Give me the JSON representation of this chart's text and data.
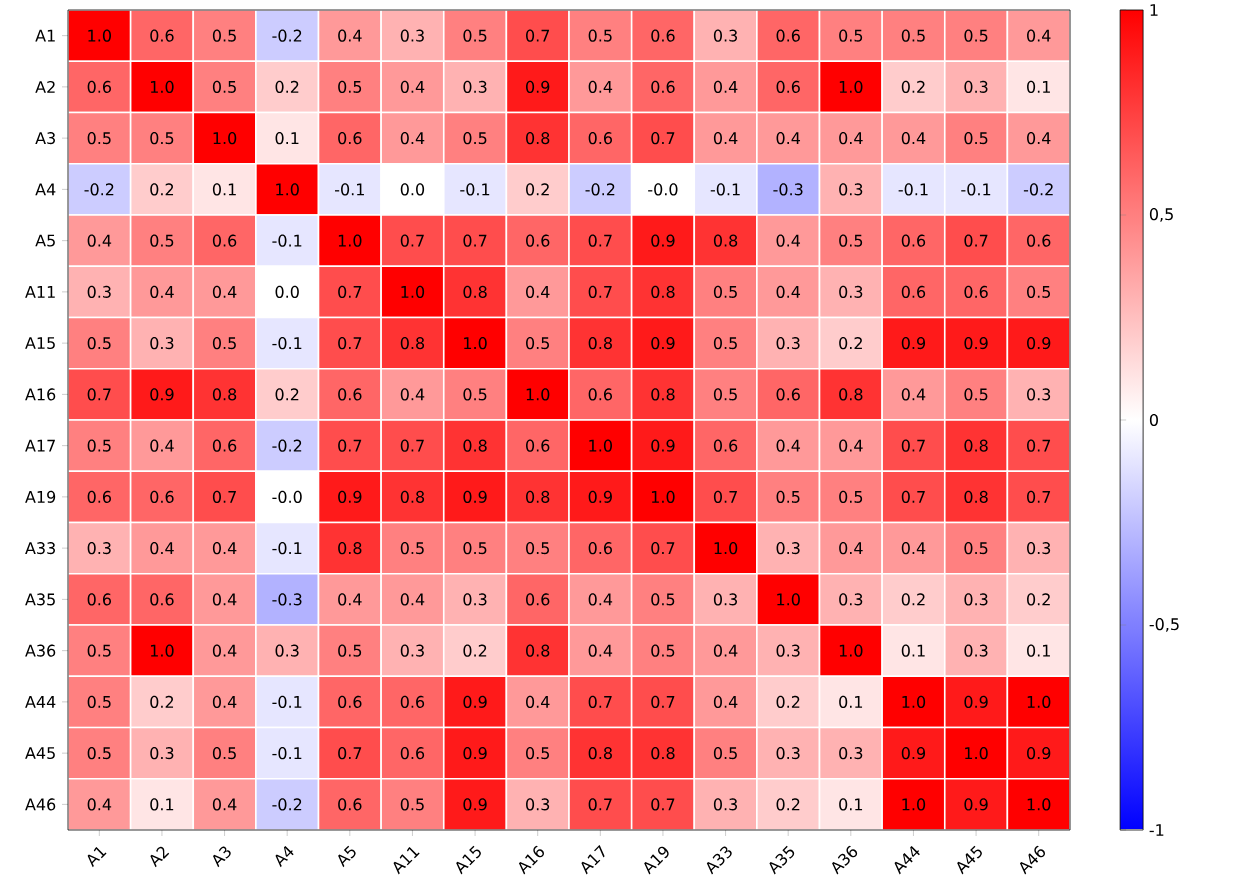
{
  "chart_data": {
    "type": "heatmap",
    "categories": [
      "A1",
      "A2",
      "A3",
      "A4",
      "A5",
      "A11",
      "A15",
      "A16",
      "A17",
      "A19",
      "A33",
      "A35",
      "A36",
      "A44",
      "A45",
      "A46"
    ],
    "y_categories": [
      "A1",
      "A2",
      "A3",
      "A4",
      "A5",
      "A11",
      "A15",
      "A16",
      "A17",
      "A19",
      "A33",
      "A35",
      "A36",
      "A44",
      "A45",
      "A46"
    ],
    "cells": [
      [
        1.0,
        0.6,
        0.5,
        -0.2,
        0.4,
        0.3,
        0.5,
        0.7,
        0.5,
        0.6,
        0.3,
        0.6,
        0.5,
        0.5,
        0.5,
        0.4
      ],
      [
        0.6,
        1.0,
        0.5,
        0.2,
        0.5,
        0.4,
        0.3,
        0.9,
        0.4,
        0.6,
        0.4,
        0.6,
        1.0,
        0.2,
        0.3,
        0.1
      ],
      [
        0.5,
        0.5,
        1.0,
        0.1,
        0.6,
        0.4,
        0.5,
        0.8,
        0.6,
        0.7,
        0.4,
        0.4,
        0.4,
        0.4,
        0.5,
        0.4
      ],
      [
        -0.2,
        0.2,
        0.1,
        1.0,
        -0.1,
        0.0,
        -0.1,
        0.2,
        -0.2,
        -0.0,
        -0.1,
        -0.3,
        0.3,
        -0.1,
        -0.1,
        -0.2
      ],
      [
        0.4,
        0.5,
        0.6,
        -0.1,
        1.0,
        0.7,
        0.7,
        0.6,
        0.7,
        0.9,
        0.8,
        0.4,
        0.5,
        0.6,
        0.7,
        0.6
      ],
      [
        0.3,
        0.4,
        0.4,
        0.0,
        0.7,
        1.0,
        0.8,
        0.4,
        0.7,
        0.8,
        0.5,
        0.4,
        0.3,
        0.6,
        0.6,
        0.5
      ],
      [
        0.5,
        0.3,
        0.5,
        -0.1,
        0.7,
        0.8,
        1.0,
        0.5,
        0.8,
        0.9,
        0.5,
        0.3,
        0.2,
        0.9,
        0.9,
        0.9
      ],
      [
        0.7,
        0.9,
        0.8,
        0.2,
        0.6,
        0.4,
        0.5,
        1.0,
        0.6,
        0.8,
        0.5,
        0.6,
        0.8,
        0.4,
        0.5,
        0.3
      ],
      [
        0.5,
        0.4,
        0.6,
        -0.2,
        0.7,
        0.7,
        0.8,
        0.6,
        1.0,
        0.9,
        0.6,
        0.4,
        0.4,
        0.7,
        0.8,
        0.7
      ],
      [
        0.6,
        0.6,
        0.7,
        -0.0,
        0.9,
        0.8,
        0.9,
        0.8,
        0.9,
        1.0,
        0.7,
        0.5,
        0.5,
        0.7,
        0.8,
        0.7
      ],
      [
        0.3,
        0.4,
        0.4,
        -0.1,
        0.8,
        0.5,
        0.5,
        0.5,
        0.6,
        0.7,
        1.0,
        0.3,
        0.4,
        0.4,
        0.5,
        0.3
      ],
      [
        0.6,
        0.6,
        0.4,
        -0.3,
        0.4,
        0.4,
        0.3,
        0.6,
        0.4,
        0.5,
        0.3,
        1.0,
        0.3,
        0.2,
        0.3,
        0.2
      ],
      [
        0.5,
        1.0,
        0.4,
        0.3,
        0.5,
        0.3,
        0.2,
        0.8,
        0.4,
        0.5,
        0.4,
        0.3,
        1.0,
        0.1,
        0.3,
        0.1
      ],
      [
        0.5,
        0.2,
        0.4,
        -0.1,
        0.6,
        0.6,
        0.9,
        0.4,
        0.7,
        0.7,
        0.4,
        0.2,
        0.1,
        1.0,
        0.9,
        1.0
      ],
      [
        0.5,
        0.3,
        0.5,
        -0.1,
        0.7,
        0.6,
        0.9,
        0.5,
        0.8,
        0.8,
        0.5,
        0.3,
        0.3,
        0.9,
        1.0,
        0.9
      ],
      [
        0.4,
        0.1,
        0.4,
        -0.2,
        0.6,
        0.5,
        0.9,
        0.3,
        0.7,
        0.7,
        0.3,
        0.2,
        0.1,
        1.0,
        0.9,
        1.0
      ]
    ],
    "cell_labels": [
      [
        "1.0",
        "0.6",
        "0.5",
        "-0.2",
        "0.4",
        "0.3",
        "0.5",
        "0.7",
        "0.5",
        "0.6",
        "0.3",
        "0.6",
        "0.5",
        "0.5",
        "0.5",
        "0.4"
      ],
      [
        "0.6",
        "1.0",
        "0.5",
        "0.2",
        "0.5",
        "0.4",
        "0.3",
        "0.9",
        "0.4",
        "0.6",
        "0.4",
        "0.6",
        "1.0",
        "0.2",
        "0.3",
        "0.1"
      ],
      [
        "0.5",
        "0.5",
        "1.0",
        "0.1",
        "0.6",
        "0.4",
        "0.5",
        "0.8",
        "0.6",
        "0.7",
        "0.4",
        "0.4",
        "0.4",
        "0.4",
        "0.5",
        "0.4"
      ],
      [
        "-0.2",
        "0.2",
        "0.1",
        "1.0",
        "-0.1",
        "0.0",
        "-0.1",
        "0.2",
        "-0.2",
        "-0.0",
        "-0.1",
        "-0.3",
        "0.3",
        "-0.1",
        "-0.1",
        "-0.2"
      ],
      [
        "0.4",
        "0.5",
        "0.6",
        "-0.1",
        "1.0",
        "0.7",
        "0.7",
        "0.6",
        "0.7",
        "0.9",
        "0.8",
        "0.4",
        "0.5",
        "0.6",
        "0.7",
        "0.6"
      ],
      [
        "0.3",
        "0.4",
        "0.4",
        "0.0",
        "0.7",
        "1.0",
        "0.8",
        "0.4",
        "0.7",
        "0.8",
        "0.5",
        "0.4",
        "0.3",
        "0.6",
        "0.6",
        "0.5"
      ],
      [
        "0.5",
        "0.3",
        "0.5",
        "-0.1",
        "0.7",
        "0.8",
        "1.0",
        "0.5",
        "0.8",
        "0.9",
        "0.5",
        "0.3",
        "0.2",
        "0.9",
        "0.9",
        "0.9"
      ],
      [
        "0.7",
        "0.9",
        "0.8",
        "0.2",
        "0.6",
        "0.4",
        "0.5",
        "1.0",
        "0.6",
        "0.8",
        "0.5",
        "0.6",
        "0.8",
        "0.4",
        "0.5",
        "0.3"
      ],
      [
        "0.5",
        "0.4",
        "0.6",
        "-0.2",
        "0.7",
        "0.7",
        "0.8",
        "0.6",
        "1.0",
        "0.9",
        "0.6",
        "0.4",
        "0.4",
        "0.7",
        "0.8",
        "0.7"
      ],
      [
        "0.6",
        "0.6",
        "0.7",
        "-0.0",
        "0.9",
        "0.8",
        "0.9",
        "0.8",
        "0.9",
        "1.0",
        "0.7",
        "0.5",
        "0.5",
        "0.7",
        "0.8",
        "0.7"
      ],
      [
        "0.3",
        "0.4",
        "0.4",
        "-0.1",
        "0.8",
        "0.5",
        "0.5",
        "0.5",
        "0.6",
        "0.7",
        "1.0",
        "0.3",
        "0.4",
        "0.4",
        "0.5",
        "0.3"
      ],
      [
        "0.6",
        "0.6",
        "0.4",
        "-0.3",
        "0.4",
        "0.4",
        "0.3",
        "0.6",
        "0.4",
        "0.5",
        "0.3",
        "1.0",
        "0.3",
        "0.2",
        "0.3",
        "0.2"
      ],
      [
        "0.5",
        "1.0",
        "0.4",
        "0.3",
        "0.5",
        "0.3",
        "0.2",
        "0.8",
        "0.4",
        "0.5",
        "0.4",
        "0.3",
        "1.0",
        "0.1",
        "0.3",
        "0.1"
      ],
      [
        "0.5",
        "0.2",
        "0.4",
        "-0.1",
        "0.6",
        "0.6",
        "0.9",
        "0.4",
        "0.7",
        "0.7",
        "0.4",
        "0.2",
        "0.1",
        "1.0",
        "0.9",
        "1.0"
      ],
      [
        "0.5",
        "0.3",
        "0.5",
        "-0.1",
        "0.7",
        "0.6",
        "0.9",
        "0.5",
        "0.8",
        "0.8",
        "0.5",
        "0.3",
        "0.3",
        "0.9",
        "1.0",
        "0.9"
      ],
      [
        "0.4",
        "0.1",
        "0.4",
        "-0.2",
        "0.6",
        "0.5",
        "0.9",
        "0.3",
        "0.7",
        "0.7",
        "0.3",
        "0.2",
        "0.1",
        "1.0",
        "0.9",
        "1.0"
      ]
    ],
    "clim": [
      -1,
      1
    ],
    "cticks": [
      {
        "value": -1,
        "label": "-1"
      },
      {
        "value": -0.5,
        "label": "-0,5"
      },
      {
        "value": 0,
        "label": "0"
      },
      {
        "value": 0.5,
        "label": "0,5"
      },
      {
        "value": 1,
        "label": "1"
      }
    ],
    "data_labels": true
  }
}
